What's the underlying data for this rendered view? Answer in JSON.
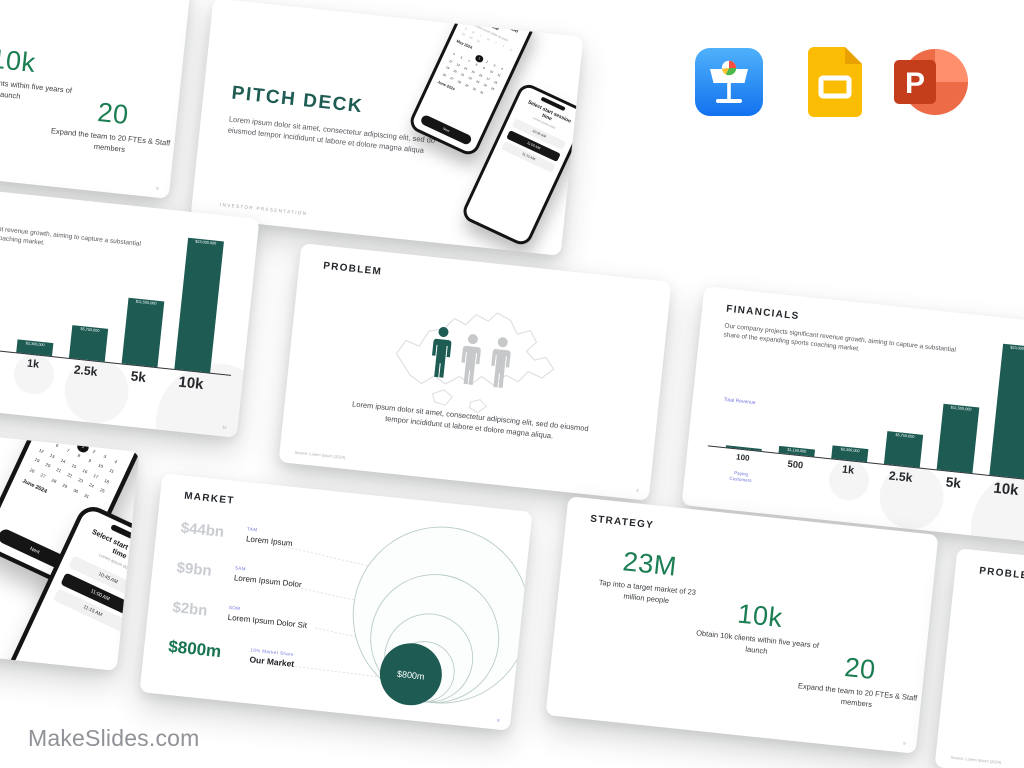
{
  "page": {
    "watermark": "MakeSlides.com"
  },
  "app_icons": {
    "keynote": "Keynote",
    "google_slides": "Google Slides",
    "powerpoint": "PowerPoint"
  },
  "slides": {
    "pitch_deck": {
      "title": "PITCH DECK",
      "body": "Lorem ipsum dolor sit amet, consectetur adipiscing elit, sed do eiusmod tempor incididunt ut labore et dolore magna aliqua",
      "footer": "INVESTOR PRESENTATION"
    },
    "phone_date": {
      "header": "Select start session date",
      "subheader": "Lorem ipsum dolor sit amet",
      "weekdays": [
        "S",
        "M",
        "T",
        "W",
        "T",
        "F",
        "S"
      ],
      "prev_days": [
        28,
        29,
        30
      ],
      "month_label": "May 2024",
      "days_in_month": 31,
      "leading_blanks": 3,
      "selected_day": 1,
      "next_month_label": "June 2024",
      "button": "Next"
    },
    "phone_time": {
      "header": "Select start session time",
      "subheader": "Lorem ipsum dolor",
      "times": [
        "10:45 AM",
        "11:00 AM",
        "11:15 AM"
      ],
      "selected_time": "11:00 AM"
    },
    "problem": {
      "title": "PROBLEM",
      "body": "Lorem ipsum dolor sit amet, consectetur adipiscing elit, sed do eiusmod tempor incididunt ut labore et dolore magna aliqua.",
      "source": "Source: Lorem Ipsum (2024)",
      "page_number": "3"
    },
    "financials": {
      "title": "FINANCIALS",
      "body": "Our company projects significant revenue growth, aiming to capture a substantial share of the expanding sports coaching market.",
      "y_axis_label": "Total Revenue",
      "x_axis_label": "Paying Customers",
      "page_number": "12"
    },
    "market": {
      "title": "MARKET",
      "rows": [
        {
          "value": "$44bn",
          "tag": "TAM",
          "label": "Lorem Ipsum"
        },
        {
          "value": "$9bn",
          "tag": "SAM",
          "label": "Lorem Ipsum Dolor"
        },
        {
          "value": "$2bn",
          "tag": "SOM",
          "label": "Lorem Ipsum Dolor Sit"
        },
        {
          "value": "$800m",
          "tag": "10% Market Share",
          "label": "Our Market"
        }
      ],
      "bubble_label": "$800m",
      "page_number": "8"
    },
    "strategy": {
      "title": "STRATEGY",
      "stats": [
        {
          "value": "23M",
          "caption": "Tap into a target market of 23 million people"
        },
        {
          "value": "10k",
          "caption": "Obtain 10k clients within five years of launch"
        },
        {
          "value": "20",
          "caption": "Expand the team to 20 FTEs & Staff members"
        }
      ],
      "page_number": "9"
    }
  },
  "chart_data": [
    {
      "type": "bar",
      "title": "FINANCIALS",
      "categories": [
        "100",
        "500",
        "1k",
        "2.5k",
        "5k",
        "10k"
      ],
      "values": [
        230000,
        1150000,
        2300000,
        5750000,
        11500000,
        23000000
      ],
      "value_labels": [
        "$230,000",
        "$1,150,000",
        "$2,300,000",
        "$5,750,000",
        "$11,500,000",
        "$23,000,000"
      ],
      "xlabel": "Paying Customers",
      "ylabel": "Total Revenue",
      "ylim": [
        0,
        23000000
      ],
      "grid": false,
      "legend": "none"
    },
    {
      "type": "nested-circles",
      "title": "MARKET",
      "items": [
        {
          "tier": "TAM",
          "label": "Lorem Ipsum",
          "value": "$44bn"
        },
        {
          "tier": "SAM",
          "label": "Lorem Ipsum Dolor",
          "value": "$9bn"
        },
        {
          "tier": "SOM",
          "label": "Lorem Ipsum Dolor Sit",
          "value": "$2bn"
        },
        {
          "tier": "10% Market Share",
          "label": "Our Market",
          "value": "$800m"
        }
      ]
    }
  ],
  "colors": {
    "accent_green": "#1b7d52",
    "deep_teal": "#1d5b53",
    "accent_purple": "#7577dc",
    "muted_gray_value": "#c9ccd1"
  }
}
